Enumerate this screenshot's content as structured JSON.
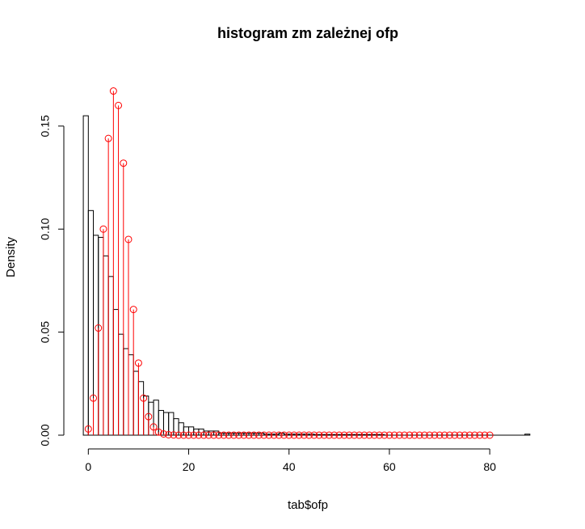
{
  "chart_data": {
    "type": "bar",
    "title": "histogram zm zależnej ofp",
    "xlabel": "tab$ofp",
    "ylabel": "Density",
    "xlim": [
      -1.5,
      89
    ],
    "ylim": [
      0,
      0.168
    ],
    "x_ticks": [
      0,
      20,
      40,
      60,
      80
    ],
    "y_ticks": [
      0.0,
      0.05,
      0.1,
      0.15
    ],
    "x_tick_labels": [
      "0",
      "20",
      "40",
      "60",
      "80"
    ],
    "y_tick_labels": [
      "0.00",
      "0.05",
      "0.10",
      "0.15"
    ],
    "grid": false,
    "legend": "none",
    "colors": {
      "histogram": "#000000",
      "pmf": "#ff0000"
    },
    "histogram": {
      "bin_start": -1,
      "bin_width": 1,
      "densities": [
        0.155,
        0.109,
        0.097,
        0.096,
        0.087,
        0.077,
        0.061,
        0.049,
        0.042,
        0.039,
        0.031,
        0.026,
        0.019,
        0.016,
        0.017,
        0.012,
        0.011,
        0.011,
        0.008,
        0.006,
        0.004,
        0.004,
        0.003,
        0.003,
        0.002,
        0.002,
        0.002,
        0.001,
        0.001,
        0.001,
        0.001,
        0.001,
        0.001,
        0.001,
        0.001,
        0.001,
        0.0005,
        0.0005,
        0.0005,
        0.001,
        0.0005,
        0.0005,
        0.0005,
        0.0005,
        0.0005,
        0.0005,
        0.0003,
        0.0003,
        0.0003,
        0.0003,
        0.0003,
        0.0003,
        0.0003,
        0.0003,
        0.0003,
        0.0003,
        0.0003,
        0.0003,
        0.0003,
        0.0003,
        0,
        0,
        0,
        0,
        0,
        0,
        0,
        0,
        0,
        0,
        0,
        0,
        0,
        0,
        0,
        0,
        0,
        0,
        0,
        0,
        0,
        0,
        0,
        0,
        0,
        0,
        0,
        0,
        0.0005
      ]
    },
    "series": [
      {
        "type": "stem",
        "x_start": 0,
        "x_step": 1,
        "values": [
          0.003,
          0.018,
          0.052,
          0.1,
          0.144,
          0.167,
          0.16,
          0.132,
          0.095,
          0.061,
          0.035,
          0.018,
          0.009,
          0.004,
          0.0015,
          0.0006,
          0.0002,
          0.0001,
          0,
          0,
          0,
          0,
          0,
          0,
          0,
          0,
          0,
          0,
          0,
          0,
          0,
          0,
          0,
          0,
          0,
          0,
          0,
          0,
          0,
          0,
          0,
          0,
          0,
          0,
          0,
          0,
          0,
          0,
          0,
          0,
          0,
          0,
          0,
          0,
          0,
          0,
          0,
          0,
          0,
          0,
          0,
          0,
          0,
          0,
          0,
          0,
          0,
          0,
          0,
          0,
          0,
          0,
          0,
          0,
          0,
          0,
          0,
          0,
          0,
          0,
          0
        ]
      }
    ]
  }
}
